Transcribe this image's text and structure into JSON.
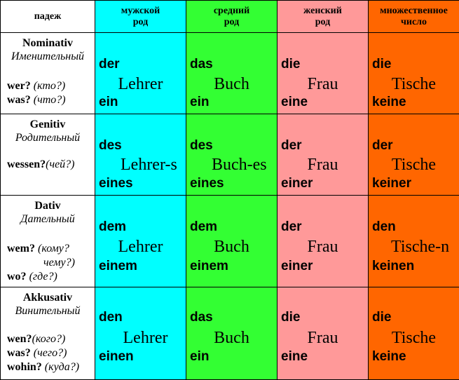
{
  "headers": {
    "case": "падеж",
    "masc": [
      "мужской",
      "род"
    ],
    "neut": [
      "средний",
      "род"
    ],
    "fem": [
      "женский",
      "род"
    ],
    "pl": [
      "множественное",
      "число"
    ]
  },
  "colors": {
    "masc": "#00ffff",
    "neut": "#33ff33",
    "fem": "#ff9999",
    "pl": "#ff6600"
  },
  "rows": [
    {
      "case": "Nominativ",
      "case_ru": "Именительный",
      "questions": [
        {
          "q": "wer?",
          "ru": "(кто?)"
        },
        {
          "q": "was?",
          "ru": "(что?)"
        }
      ],
      "masc": {
        "def": "der",
        "noun": "Lehrer",
        "indef": "ein"
      },
      "neut": {
        "def": "das",
        "noun": "Buch",
        "indef": "ein"
      },
      "fem": {
        "def": "die",
        "noun": "Frau",
        "indef": "eine"
      },
      "pl": {
        "def": "die",
        "noun": "Tische",
        "indef": "keine"
      }
    },
    {
      "case": "Genitiv",
      "case_ru": "Родительный",
      "questions": [
        {
          "q": "wessen?",
          "ru": "(чей?)"
        }
      ],
      "masc": {
        "def": "des",
        "noun": "Lehrer-s",
        "indef": "eines"
      },
      "neut": {
        "def": "des",
        "noun": "Buch-es",
        "indef": "eines"
      },
      "fem": {
        "def": "der",
        "noun": "Frau",
        "indef": "einer"
      },
      "pl": {
        "def": "der",
        "noun": "Tische",
        "indef": "keiner"
      }
    },
    {
      "case": "Dativ",
      "case_ru": "Дательный",
      "questions": [
        {
          "q": "wem?",
          "ru": "(кому?"
        },
        {
          "q": "",
          "ru": "чему?)"
        },
        {
          "q": "wo?",
          "ru": "(где?)"
        }
      ],
      "masc": {
        "def": "dem",
        "noun": "Lehrer",
        "indef": "einem"
      },
      "neut": {
        "def": "dem",
        "noun": "Buch",
        "indef": "einem"
      },
      "fem": {
        "def": "der",
        "noun": "Frau",
        "indef": "einer"
      },
      "pl": {
        "def": "den",
        "noun": "Tische-n",
        "indef": "keinen"
      }
    },
    {
      "case": "Akkusativ",
      "case_ru": "Винительный",
      "questions": [
        {
          "q": "wen?",
          "ru": "(кого?)"
        },
        {
          "q": "was?",
          "ru": "(чего?)"
        },
        {
          "q": "wohin?",
          "ru": "(куда?)"
        }
      ],
      "masc": {
        "def": "den",
        "noun": "Lehrer",
        "indef": "einen"
      },
      "neut": {
        "def": "das",
        "noun": "Buch",
        "indef": "ein"
      },
      "fem": {
        "def": "die",
        "noun": "Frau",
        "indef": "eine"
      },
      "pl": {
        "def": "die",
        "noun": "Tische",
        "indef": "keine"
      }
    }
  ]
}
